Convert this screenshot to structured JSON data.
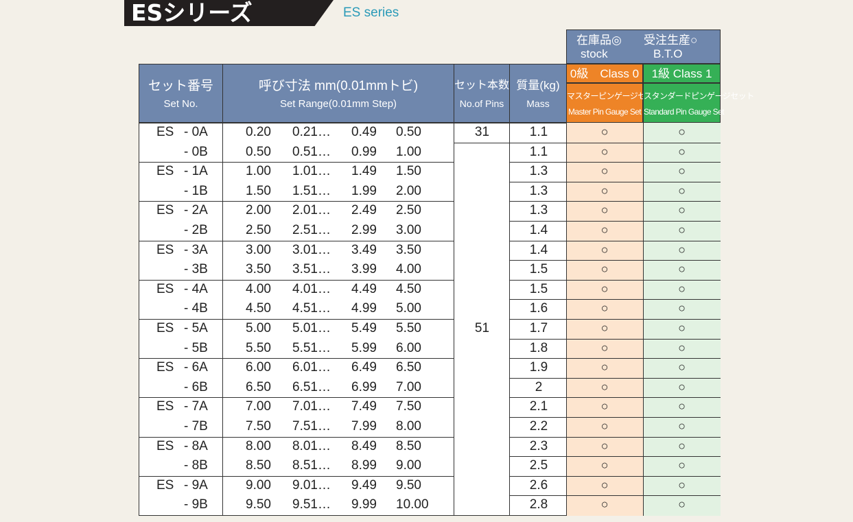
{
  "title": "ESシリーズ",
  "subtitle": "ES series",
  "legend": {
    "stock_jp": "在庫品◎",
    "bto_jp": "受注生産○",
    "stock_en": "stock",
    "bto_en": "B.T.O"
  },
  "headers": {
    "set_no_jp": "セット番号",
    "set_no_en": "Set No.",
    "range_jp": "呼び寸法 mm(0.01mmトビ)",
    "range_en": "Set Range(0.01mm Step)",
    "pins_jp": "セット本数",
    "pins_en": "No.of Pins",
    "mass_jp": "質量(kg)",
    "mass_en": "Mass",
    "class0": "0級　Class 0",
    "class1": "1級 Class 1",
    "master_jp": "マスターピンゲージセット",
    "master_en": "Master Pin Gauge Set",
    "standard_jp": "スタンダードピンゲージセット",
    "standard_en": "Standard Pin Gauge Set"
  },
  "pins": {
    "first": "31",
    "rest": "51"
  },
  "rows": [
    {
      "es": "ES",
      "suffix": "- 0A",
      "r1": "0.20",
      "r2": "0.21…",
      "r3": "0.49",
      "r4": "0.50",
      "mass": "1.1",
      "c0": "○",
      "c1": "○"
    },
    {
      "es": "",
      "suffix": "- 0B",
      "r1": "0.50",
      "r2": "0.51…",
      "r3": "0.99",
      "r4": "1.00",
      "mass": "1.1",
      "c0": "○",
      "c1": "○"
    },
    {
      "es": "ES",
      "suffix": "- 1A",
      "r1": "1.00",
      "r2": "1.01…",
      "r3": "1.49",
      "r4": "1.50",
      "mass": "1.3",
      "c0": "○",
      "c1": "○"
    },
    {
      "es": "",
      "suffix": "- 1B",
      "r1": "1.50",
      "r2": "1.51…",
      "r3": "1.99",
      "r4": "2.00",
      "mass": "1.3",
      "c0": "○",
      "c1": "○"
    },
    {
      "es": "ES",
      "suffix": "- 2A",
      "r1": "2.00",
      "r2": "2.01…",
      "r3": "2.49",
      "r4": "2.50",
      "mass": "1.3",
      "c0": "○",
      "c1": "○"
    },
    {
      "es": "",
      "suffix": "- 2B",
      "r1": "2.50",
      "r2": "2.51…",
      "r3": "2.99",
      "r4": "3.00",
      "mass": "1.4",
      "c0": "○",
      "c1": "○"
    },
    {
      "es": "ES",
      "suffix": "- 3A",
      "r1": "3.00",
      "r2": "3.01…",
      "r3": "3.49",
      "r4": "3.50",
      "mass": "1.4",
      "c0": "○",
      "c1": "○"
    },
    {
      "es": "",
      "suffix": "- 3B",
      "r1": "3.50",
      "r2": "3.51…",
      "r3": "3.99",
      "r4": "4.00",
      "mass": "1.5",
      "c0": "○",
      "c1": "○"
    },
    {
      "es": "ES",
      "suffix": "- 4A",
      "r1": "4.00",
      "r2": "4.01…",
      "r3": "4.49",
      "r4": "4.50",
      "mass": "1.5",
      "c0": "○",
      "c1": "○"
    },
    {
      "es": "",
      "suffix": "- 4B",
      "r1": "4.50",
      "r2": "4.51…",
      "r3": "4.99",
      "r4": "5.00",
      "mass": "1.6",
      "c0": "○",
      "c1": "○"
    },
    {
      "es": "ES",
      "suffix": "- 5A",
      "r1": "5.00",
      "r2": "5.01…",
      "r3": "5.49",
      "r4": "5.50",
      "mass": "1.7",
      "c0": "○",
      "c1": "○"
    },
    {
      "es": "",
      "suffix": "- 5B",
      "r1": "5.50",
      "r2": "5.51…",
      "r3": "5.99",
      "r4": "6.00",
      "mass": "1.8",
      "c0": "○",
      "c1": "○"
    },
    {
      "es": "ES",
      "suffix": "- 6A",
      "r1": "6.00",
      "r2": "6.01…",
      "r3": "6.49",
      "r4": "6.50",
      "mass": "1.9",
      "c0": "○",
      "c1": "○"
    },
    {
      "es": "",
      "suffix": "- 6B",
      "r1": "6.50",
      "r2": "6.51…",
      "r3": "6.99",
      "r4": "7.00",
      "mass": "2",
      "c0": "○",
      "c1": "○"
    },
    {
      "es": "ES",
      "suffix": "- 7A",
      "r1": "7.00",
      "r2": "7.01…",
      "r3": "7.49",
      "r4": "7.50",
      "mass": "2.1",
      "c0": "○",
      "c1": "○"
    },
    {
      "es": "",
      "suffix": "- 7B",
      "r1": "7.50",
      "r2": "7.51…",
      "r3": "7.99",
      "r4": "8.00",
      "mass": "2.2",
      "c0": "○",
      "c1": "○"
    },
    {
      "es": "ES",
      "suffix": "- 8A",
      "r1": "8.00",
      "r2": "8.01…",
      "r3": "8.49",
      "r4": "8.50",
      "mass": "2.3",
      "c0": "○",
      "c1": "○"
    },
    {
      "es": "",
      "suffix": "- 8B",
      "r1": "8.50",
      "r2": "8.51…",
      "r3": "8.99",
      "r4": "9.00",
      "mass": "2.5",
      "c0": "○",
      "c1": "○"
    },
    {
      "es": "ES",
      "suffix": "- 9A",
      "r1": "9.00",
      "r2": "9.01…",
      "r3": "9.49",
      "r4": "9.50",
      "mass": "2.6",
      "c0": "○",
      "c1": "○"
    },
    {
      "es": "",
      "suffix": "- 9B",
      "r1": "9.50",
      "r2": "9.51…",
      "r3": "9.99",
      "r4": "10.00",
      "mass": "2.8",
      "c0": "○",
      "c1": "○"
    }
  ]
}
